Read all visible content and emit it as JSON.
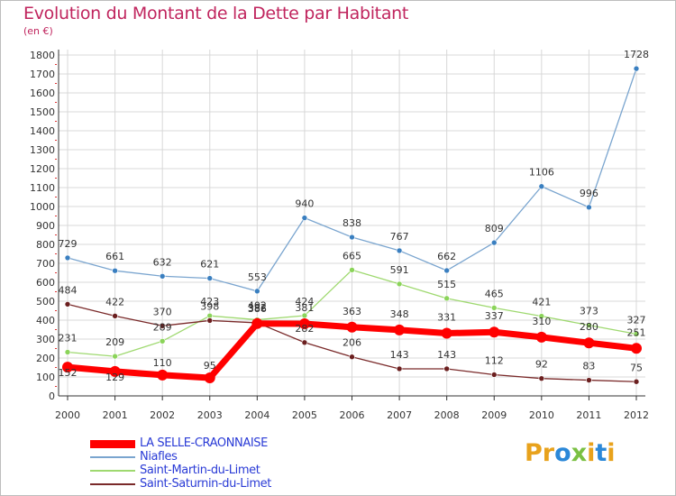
{
  "title": "Evolution du Montant de la Dette par Habitant",
  "subtitle": "(en €)",
  "logo_text": "Proxiti",
  "colors": {
    "title": "#c0255e",
    "legend_text": "#2a3bd6",
    "grid": "#d8d8d8",
    "axis": "#333333"
  },
  "chart_data": {
    "type": "line",
    "x": [
      "2000",
      "2001",
      "2002",
      "2003",
      "2004",
      "2005",
      "2006",
      "2007",
      "2008",
      "2009",
      "2010",
      "2011",
      "2012"
    ],
    "ylim": [
      0,
      1800
    ],
    "yticks": [
      0,
      100,
      200,
      300,
      400,
      500,
      600,
      700,
      800,
      900,
      1000,
      1100,
      1200,
      1300,
      1400,
      1500,
      1600,
      1700,
      1800
    ],
    "grid": true,
    "legend_position": "bottom-left",
    "series": [
      {
        "name": "LA SELLE-CRAONNAISE",
        "color": "#ff0000",
        "marker": "#ff0000",
        "thick": true,
        "values": [
          152,
          129,
          110,
          95,
          382,
          381,
          363,
          348,
          331,
          337,
          310,
          280,
          251
        ]
      },
      {
        "name": "Niafles",
        "color": "#7aa5cf",
        "marker": "#3a7fc0",
        "values": [
          729,
          661,
          632,
          621,
          553,
          940,
          838,
          767,
          662,
          809,
          1106,
          996,
          1728
        ]
      },
      {
        "name": "Saint-Martin-du-Limet",
        "color": "#9fd970",
        "marker": "#8bd45a",
        "values": [
          231,
          209,
          289,
          423,
          402,
          424,
          665,
          591,
          515,
          465,
          421,
          373,
          327
        ]
      },
      {
        "name": "Saint-Saturnin-du-Limet",
        "color": "#7a2a2a",
        "marker": "#6b1f1f",
        "values": [
          484,
          422,
          370,
          398,
          386,
          282,
          206,
          143,
          143,
          112,
          92,
          83,
          75
        ]
      }
    ],
    "data_labels": [
      {
        "text": "152",
        "x": "2000",
        "y": 152,
        "dx": 0,
        "dy": 10
      },
      {
        "text": "129",
        "x": "2001",
        "y": 129,
        "dx": 0,
        "dy": 10
      },
      {
        "text": "110",
        "x": "2002",
        "y": 110,
        "dx": 0,
        "dy": -10
      },
      {
        "text": "95",
        "x": "2003",
        "y": 95,
        "dx": 0,
        "dy": -10
      },
      {
        "text": "382",
        "x": "2004",
        "y": 382,
        "dx": 0,
        "dy": -14
      },
      {
        "text": "381",
        "x": "2005",
        "y": 381,
        "dx": 0,
        "dy": -14
      },
      {
        "text": "363",
        "x": "2006",
        "y": 363,
        "dx": 0,
        "dy": -14
      },
      {
        "text": "348",
        "x": "2007",
        "y": 348,
        "dx": 0,
        "dy": -14
      },
      {
        "text": "331",
        "x": "2008",
        "y": 331,
        "dx": 0,
        "dy": -14
      },
      {
        "text": "337",
        "x": "2009",
        "y": 337,
        "dx": 0,
        "dy": -14
      },
      {
        "text": "310",
        "x": "2010",
        "y": 310,
        "dx": 0,
        "dy": -14
      },
      {
        "text": "280",
        "x": "2011",
        "y": 280,
        "dx": 0,
        "dy": -14
      },
      {
        "text": "251",
        "x": "2012",
        "y": 251,
        "dx": 0,
        "dy": -14
      },
      {
        "text": "729",
        "x": "2000",
        "y": 729,
        "dx": 0,
        "dy": -12
      },
      {
        "text": "661",
        "x": "2001",
        "y": 661,
        "dx": 0,
        "dy": -12
      },
      {
        "text": "632",
        "x": "2002",
        "y": 632,
        "dx": 0,
        "dy": -12
      },
      {
        "text": "621",
        "x": "2003",
        "y": 621,
        "dx": 0,
        "dy": -12
      },
      {
        "text": "553",
        "x": "2004",
        "y": 553,
        "dx": 0,
        "dy": -12
      },
      {
        "text": "940",
        "x": "2005",
        "y": 940,
        "dx": 0,
        "dy": -12
      },
      {
        "text": "838",
        "x": "2006",
        "y": 838,
        "dx": 0,
        "dy": -12
      },
      {
        "text": "767",
        "x": "2007",
        "y": 767,
        "dx": 0,
        "dy": -12
      },
      {
        "text": "662",
        "x": "2008",
        "y": 662,
        "dx": 0,
        "dy": -12
      },
      {
        "text": "809",
        "x": "2009",
        "y": 809,
        "dx": 0,
        "dy": -12
      },
      {
        "text": "1106",
        "x": "2010",
        "y": 1106,
        "dx": 0,
        "dy": -12
      },
      {
        "text": "996",
        "x": "2011",
        "y": 996,
        "dx": 0,
        "dy": -12
      },
      {
        "text": "1728",
        "x": "2012",
        "y": 1728,
        "dx": 0,
        "dy": -12
      },
      {
        "text": "231",
        "x": "2000",
        "y": 231,
        "dx": 0,
        "dy": -12
      },
      {
        "text": "209",
        "x": "2001",
        "y": 209,
        "dx": 0,
        "dy": -12
      },
      {
        "text": "289",
        "x": "2002",
        "y": 289,
        "dx": 0,
        "dy": -12
      },
      {
        "text": "423",
        "x": "2003",
        "y": 423,
        "dx": 0,
        "dy": -12
      },
      {
        "text": "402",
        "x": "2004",
        "y": 402,
        "dx": 0,
        "dy": -12
      },
      {
        "text": "424",
        "x": "2005",
        "y": 424,
        "dx": 0,
        "dy": -12
      },
      {
        "text": "665",
        "x": "2006",
        "y": 665,
        "dx": 0,
        "dy": -12
      },
      {
        "text": "591",
        "x": "2007",
        "y": 591,
        "dx": 0,
        "dy": -12
      },
      {
        "text": "515",
        "x": "2008",
        "y": 515,
        "dx": 0,
        "dy": -12
      },
      {
        "text": "465",
        "x": "2009",
        "y": 465,
        "dx": 0,
        "dy": -12
      },
      {
        "text": "421",
        "x": "2010",
        "y": 421,
        "dx": 0,
        "dy": -12
      },
      {
        "text": "373",
        "x": "2011",
        "y": 373,
        "dx": 0,
        "dy": -12
      },
      {
        "text": "327",
        "x": "2012",
        "y": 327,
        "dx": 0,
        "dy": -12
      },
      {
        "text": "484",
        "x": "2000",
        "y": 484,
        "dx": 0,
        "dy": -12
      },
      {
        "text": "422",
        "x": "2001",
        "y": 422,
        "dx": 0,
        "dy": -12
      },
      {
        "text": "370",
        "x": "2002",
        "y": 370,
        "dx": 0,
        "dy": -12
      },
      {
        "text": "398",
        "x": "2003",
        "y": 398,
        "dx": 0,
        "dy": -12
      },
      {
        "text": "386",
        "x": "2004",
        "y": 386,
        "dx": 0,
        "dy": -12
      },
      {
        "text": "282",
        "x": "2005",
        "y": 282,
        "dx": 0,
        "dy": -12
      },
      {
        "text": "206",
        "x": "2006",
        "y": 206,
        "dx": 0,
        "dy": -12
      },
      {
        "text": "143",
        "x": "2007",
        "y": 143,
        "dx": 0,
        "dy": -12
      },
      {
        "text": "143",
        "x": "2008",
        "y": 143,
        "dx": 0,
        "dy": -12
      },
      {
        "text": "112",
        "x": "2009",
        "y": 112,
        "dx": 0,
        "dy": -12
      },
      {
        "text": "92",
        "x": "2010",
        "y": 92,
        "dx": 0,
        "dy": -12
      },
      {
        "text": "83",
        "x": "2011",
        "y": 83,
        "dx": 0,
        "dy": -12
      },
      {
        "text": "75",
        "x": "2012",
        "y": 75,
        "dx": 0,
        "dy": -12
      }
    ]
  }
}
